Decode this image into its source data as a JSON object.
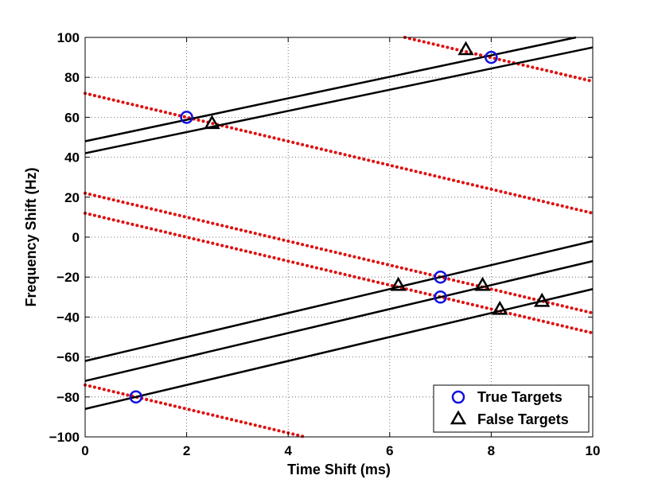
{
  "chart_data": {
    "type": "line",
    "title": "",
    "xlabel": "Time Shift (ms)",
    "ylabel": "Frequency Shift (Hz)",
    "xlim": [
      0,
      10
    ],
    "ylim": [
      -100,
      100
    ],
    "xticks": [
      0,
      2,
      4,
      6,
      8,
      10
    ],
    "yticks": [
      -100,
      -80,
      -60,
      -40,
      -20,
      0,
      20,
      40,
      60,
      80,
      100
    ],
    "xtick_labels": [
      "0",
      "2",
      "4",
      "6",
      "8",
      "10"
    ],
    "ytick_labels": [
      "−100",
      "−80",
      "−60",
      "−40",
      "−20",
      "0",
      "20",
      "40",
      "60",
      "80",
      "100"
    ],
    "grid": true,
    "grid_style": "dotted",
    "legend_position": "bottom-right",
    "colors": {
      "solid": "#000000",
      "dotted": "#e01010",
      "true_marker": "#1010e0",
      "false_marker": "#000000"
    },
    "solid_lines": [
      {
        "x": [
          0,
          9.67
        ],
        "y": [
          48,
          100
        ]
      },
      {
        "x": [
          0,
          10
        ],
        "y": [
          42,
          95
        ]
      },
      {
        "x": [
          0,
          10
        ],
        "y": [
          -62,
          -2
        ]
      },
      {
        "x": [
          0,
          10
        ],
        "y": [
          -72,
          -12
        ]
      },
      {
        "x": [
          0,
          10
        ],
        "y": [
          -86,
          -26
        ]
      }
    ],
    "dotted_lines": [
      {
        "x": [
          6.3,
          10
        ],
        "y": [
          100,
          78
        ]
      },
      {
        "x": [
          0,
          10
        ],
        "y": [
          72,
          12
        ]
      },
      {
        "x": [
          0,
          10
        ],
        "y": [
          22,
          -38
        ]
      },
      {
        "x": [
          0,
          10
        ],
        "y": [
          12,
          -48
        ]
      },
      {
        "x": [
          0,
          4.33
        ],
        "y": [
          -74,
          -100
        ]
      }
    ],
    "series": [
      {
        "name": "True Targets",
        "marker": "circle",
        "x": [
          8,
          2,
          7,
          7,
          1
        ],
        "y": [
          90,
          60,
          -20,
          -30,
          -80
        ]
      },
      {
        "name": "False Targets",
        "marker": "triangle",
        "x": [
          7.5,
          2.5,
          6.17,
          7.83,
          8.17,
          9.0
        ],
        "y": [
          94,
          57,
          -24,
          -24,
          -36,
          -32
        ]
      }
    ]
  }
}
